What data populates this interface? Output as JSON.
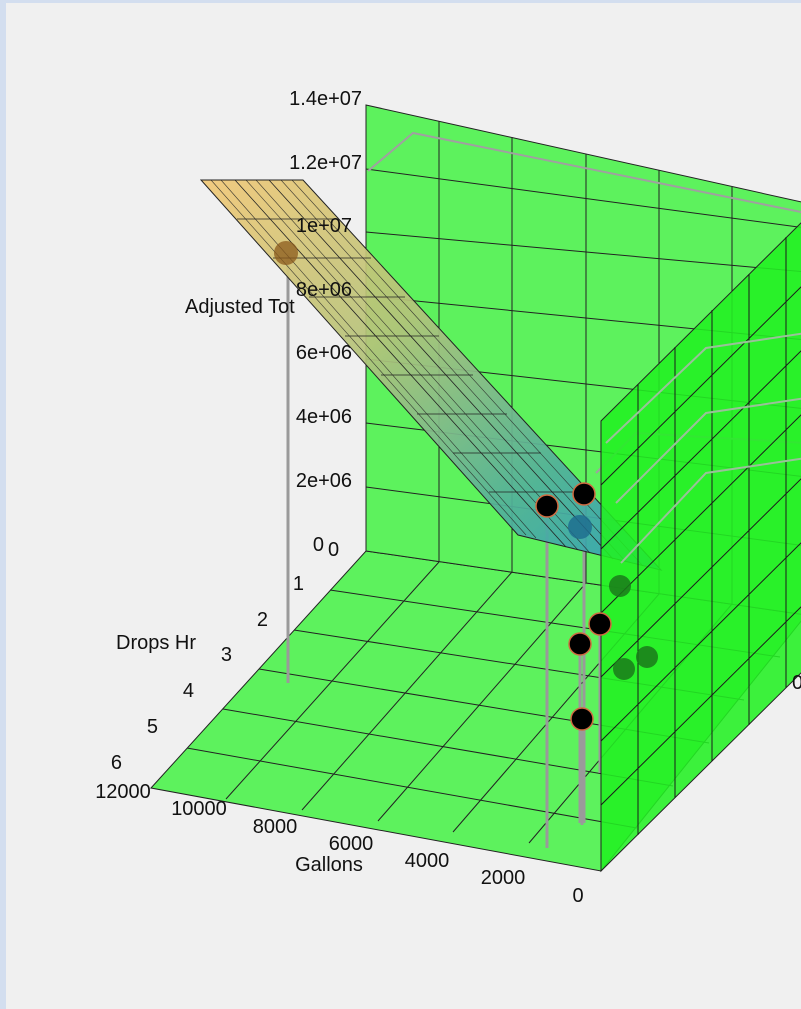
{
  "chart_data": {
    "type": "3d-surface-scatter",
    "title": "",
    "xlabel": "Gallons",
    "ylabel": "Drops Hr",
    "zlabel": "Adjusted Tot",
    "xlim": [
      0,
      12000
    ],
    "ylim": [
      0,
      6
    ],
    "zlim": [
      0,
      14000000
    ],
    "x_ticks": [
      "0",
      "2000",
      "4000",
      "6000",
      "8000",
      "10000",
      "12000"
    ],
    "y_ticks": [
      "0",
      "1",
      "2",
      "3",
      "4",
      "5",
      "6"
    ],
    "z_ticks": [
      "0",
      "2e+06",
      "4e+06",
      "6e+06",
      "8e+06",
      "1e+07",
      "1.2e+07",
      "1.4e+07"
    ],
    "grid": true,
    "colors": {
      "floor_and_walls": "#5df25d",
      "side_panel": "#22f022",
      "surface_high": "#e8c272",
      "surface_low": "#31a3b8",
      "points": "#000000",
      "stems": "#9a9a9a",
      "background": "#f0f0f0"
    },
    "points": [
      {
        "x": 11000,
        "y": 2.0,
        "z": 9000000
      },
      {
        "x": 1500,
        "y": 0.3,
        "z": 1800000
      },
      {
        "x": 500,
        "y": 0.8,
        "z": 1400000
      },
      {
        "x": 300,
        "y": 3.6,
        "z": 600000
      },
      {
        "x": 200,
        "y": 5.3,
        "z": 100000
      },
      {
        "x": 900,
        "y": 2.6,
        "z": 100000
      }
    ]
  }
}
